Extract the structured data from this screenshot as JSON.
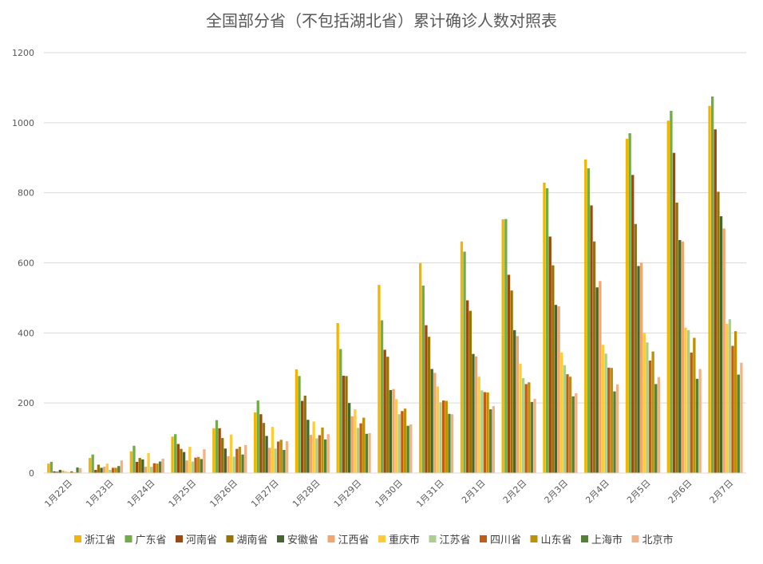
{
  "chart_data": {
    "type": "bar",
    "title": "全国部分省（不包括湖北省）累计确诊人数对照表",
    "xlabel": "",
    "ylabel": "",
    "ylim": [
      0,
      1200
    ],
    "yticks": [
      0,
      200,
      400,
      600,
      800,
      1000,
      1200
    ],
    "grid": true,
    "legend_position": "bottom",
    "categories": [
      "1月22日",
      "1月23日",
      "1月24日",
      "1月25日",
      "1月26日",
      "1月27日",
      "1月28日",
      "1月29日",
      "1月30日",
      "1月31日",
      "2月1日",
      "2月2日",
      "2月3日",
      "2月4日",
      "2月5日",
      "2月6日",
      "2月7日"
    ],
    "series": [
      {
        "name": "浙江省",
        "color": "#F2B600",
        "values": [
          27,
          43,
          62,
          104,
          128,
          173,
          296,
          428,
          537,
          599,
          661,
          724,
          829,
          895,
          954,
          1006,
          1048
        ]
      },
      {
        "name": "广东省",
        "color": "#70AD47",
        "values": [
          32,
          53,
          78,
          111,
          151,
          207,
          277,
          354,
          436,
          535,
          632,
          725,
          813,
          870,
          970,
          1034,
          1075
        ]
      },
      {
        "name": "河南省",
        "color": "#9E480E",
        "values": [
          5,
          9,
          32,
          83,
          128,
          168,
          206,
          278,
          352,
          422,
          493,
          566,
          675,
          764,
          851,
          914,
          981
        ]
      },
      {
        "name": "湖南省",
        "color": "#997300",
        "values": [
          4,
          24,
          43,
          69,
          100,
          143,
          221,
          277,
          332,
          389,
          463,
          521,
          593,
          661,
          711,
          772,
          803
        ]
      },
      {
        "name": "安徽省",
        "color": "#43682B",
        "values": [
          9,
          15,
          39,
          60,
          70,
          106,
          152,
          200,
          237,
          297,
          340,
          408,
          480,
          530,
          591,
          665,
          733
        ]
      },
      {
        "name": "江西省",
        "color": "#F4A46E",
        "values": [
          7,
          18,
          18,
          36,
          48,
          72,
          109,
          162,
          240,
          286,
          333,
          391,
          476,
          548,
          600,
          661,
          698
        ]
      },
      {
        "name": "重庆市",
        "color": "#FFCC33",
        "values": [
          5,
          27,
          57,
          75,
          110,
          132,
          147,
          182,
          211,
          247,
          275,
          312,
          344,
          366,
          400,
          415,
          426
        ]
      },
      {
        "name": "江苏省",
        "color": "#A9D18E",
        "values": [
          3,
          9,
          18,
          33,
          47,
          70,
          99,
          129,
          168,
          202,
          236,
          271,
          308,
          341,
          373,
          408,
          439
        ]
      },
      {
        "name": "四川省",
        "color": "#C55A11",
        "values": [
          5,
          15,
          28,
          44,
          69,
          90,
          108,
          142,
          177,
          207,
          231,
          254,
          282,
          301,
          321,
          344,
          363
        ]
      },
      {
        "name": "山东省",
        "color": "#BF9000",
        "values": [
          2,
          15,
          27,
          46,
          75,
          95,
          130,
          158,
          184,
          206,
          230,
          259,
          275,
          300,
          347,
          386,
          405
        ]
      },
      {
        "name": "上海市",
        "color": "#548235",
        "values": [
          16,
          20,
          33,
          40,
          53,
          66,
          96,
          112,
          135,
          169,
          182,
          203,
          219,
          233,
          254,
          269,
          281
        ]
      },
      {
        "name": "北京市",
        "color": "#F4B183",
        "values": [
          14,
          36,
          41,
          68,
          80,
          91,
          111,
          114,
          139,
          168,
          191,
          212,
          228,
          253,
          274,
          297,
          315
        ]
      }
    ]
  }
}
